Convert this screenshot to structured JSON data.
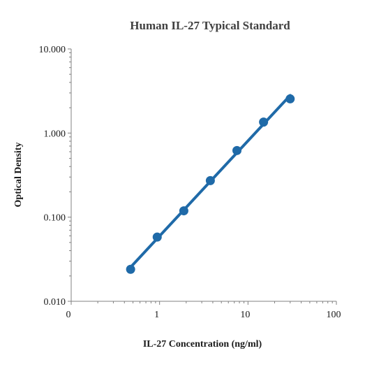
{
  "chart_data": {
    "type": "scatter",
    "title": "Human IL-27 Typical Standard",
    "xlabel": "IL-27 Concentration (ng/ml)",
    "ylabel": "Optical Density",
    "x_scale": "log",
    "y_scale": "log",
    "xlim": [
      0.1,
      100
    ],
    "ylim": [
      0.01,
      10
    ],
    "x_ticks": [
      0.1,
      1,
      10,
      100
    ],
    "x_tick_labels": [
      "0",
      "1",
      "10",
      "100"
    ],
    "y_ticks": [
      0.01,
      0.1,
      1,
      10
    ],
    "y_tick_labels": [
      "0.010",
      "0.100",
      "1.000",
      "10.000"
    ],
    "grid": false,
    "legend": "none",
    "series": [
      {
        "x": [
          0.47,
          0.94,
          1.88,
          3.75,
          7.5,
          15,
          30
        ],
        "y": [
          0.024,
          0.058,
          0.119,
          0.272,
          0.62,
          1.35,
          2.55
        ],
        "color": "#1f6aa8",
        "marker": "circle",
        "line": "trend"
      }
    ],
    "colors": {
      "series": "#1f6aa8",
      "axis": "#808080",
      "title": "#404040",
      "text": "#1a1a1a"
    }
  }
}
